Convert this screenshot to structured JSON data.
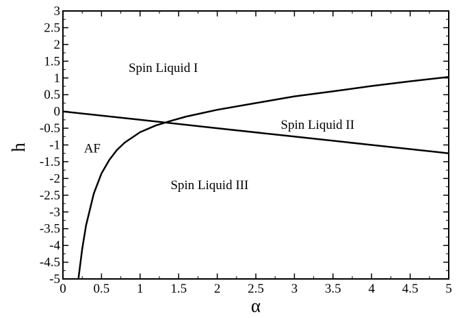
{
  "chart_data": {
    "type": "line",
    "title": "",
    "xlabel": "α",
    "ylabel": "h",
    "xlim": [
      0,
      5
    ],
    "ylim": [
      -5,
      3
    ],
    "x_ticks": [
      0,
      0.5,
      1,
      1.5,
      2,
      2.5,
      3,
      3.5,
      4,
      4.5,
      5
    ],
    "x_tick_labels": [
      "0",
      "0.5",
      "1",
      "1.5",
      "2",
      "2.5",
      "3",
      "3.5",
      "4",
      "4.5",
      "5"
    ],
    "y_ticks": [
      -5,
      -4.5,
      -4,
      -3.5,
      -3,
      -2.5,
      -2,
      -1.5,
      -1,
      -0.5,
      0,
      0.5,
      1,
      1.5,
      2,
      2.5,
      3
    ],
    "y_tick_labels": [
      "-5",
      "-4.5",
      "-4",
      "-3.5",
      "-3",
      "-2.5",
      "-2",
      "-1.5",
      "-1",
      "-0.5",
      "0",
      "0.5",
      "1",
      "1.5",
      "2",
      "2.5",
      "3"
    ],
    "grid": false,
    "series": [
      {
        "x": [
          0,
          1,
          2,
          3,
          4,
          5
        ],
        "y": [
          0,
          -0.25,
          -0.5,
          -0.75,
          -1.0,
          -1.25
        ]
      },
      {
        "x": [
          0.2,
          0.25,
          0.3,
          0.4,
          0.5,
          0.6,
          0.7,
          0.8,
          1.0,
          1.2,
          1.4,
          1.6,
          1.8,
          2.0,
          2.5,
          3.0,
          3.5,
          4.0,
          4.5,
          5.0
        ],
        "y": [
          -5.0,
          -4.1,
          -3.4,
          -2.45,
          -1.85,
          -1.45,
          -1.15,
          -0.93,
          -0.62,
          -0.42,
          -0.28,
          -0.15,
          -0.05,
          0.05,
          0.25,
          0.45,
          0.6,
          0.76,
          0.9,
          1.03
        ]
      }
    ],
    "annotations": [
      {
        "text": "Spin Liquid I",
        "x": 1.3,
        "y": 1.3
      },
      {
        "text": "Spin Liquid II",
        "x": 3.3,
        "y": -0.4
      },
      {
        "text": "Spin Liquid III",
        "x": 1.9,
        "y": -2.2
      },
      {
        "text": "AF",
        "x": 0.38,
        "y": -1.1
      }
    ]
  }
}
